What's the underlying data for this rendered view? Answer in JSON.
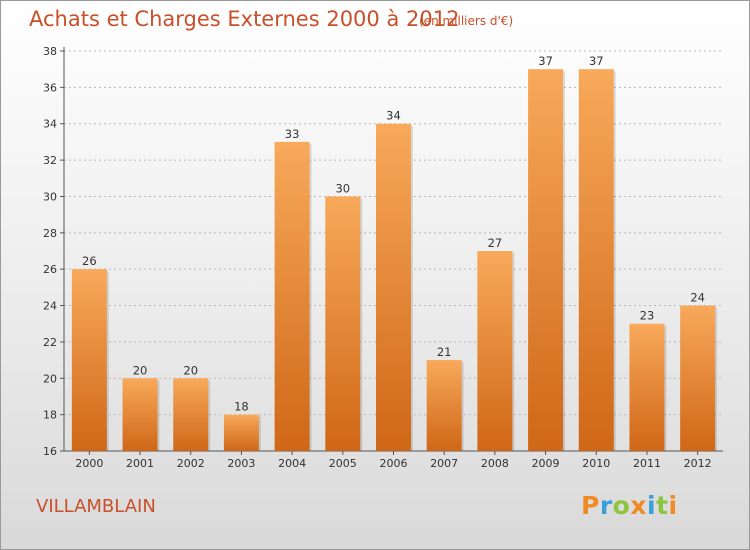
{
  "title": "Achats et Charges Externes 2000 à 2012",
  "unit_note": "(en milliers d'€)",
  "commune": "VILLAMBLAIN",
  "brand": {
    "text": "Proxiti",
    "letters": [
      {
        "char": "P",
        "color": "#f08a24"
      },
      {
        "char": "r",
        "color": "#3aa0d8"
      },
      {
        "char": "o",
        "color": "#8cc63f"
      },
      {
        "char": "x",
        "color": "#f08a24"
      },
      {
        "char": "i",
        "color": "#3aa0d8"
      },
      {
        "char": "t",
        "color": "#8cc63f"
      },
      {
        "char": "i",
        "color": "#f08a24"
      }
    ]
  },
  "colors": {
    "bar_light": "#f8a95a",
    "bar_dark": "#cf6717",
    "title": "#c8502a",
    "grid": "#b8b8b8"
  },
  "chart_data": {
    "type": "bar",
    "title": "Achats et Charges Externes 2000 à 2012",
    "subtitle": "(en milliers d'€)",
    "categories": [
      "2000",
      "2001",
      "2002",
      "2003",
      "2004",
      "2005",
      "2006",
      "2007",
      "2008",
      "2009",
      "2010",
      "2011",
      "2012"
    ],
    "values": [
      26,
      20,
      20,
      18,
      33,
      30,
      34,
      21,
      27,
      37,
      37,
      23,
      24
    ],
    "ylim": [
      16,
      38
    ],
    "yticks": [
      16,
      18,
      20,
      22,
      24,
      26,
      28,
      30,
      32,
      34,
      36,
      38
    ],
    "grid": true,
    "xlabel": "",
    "ylabel": ""
  }
}
